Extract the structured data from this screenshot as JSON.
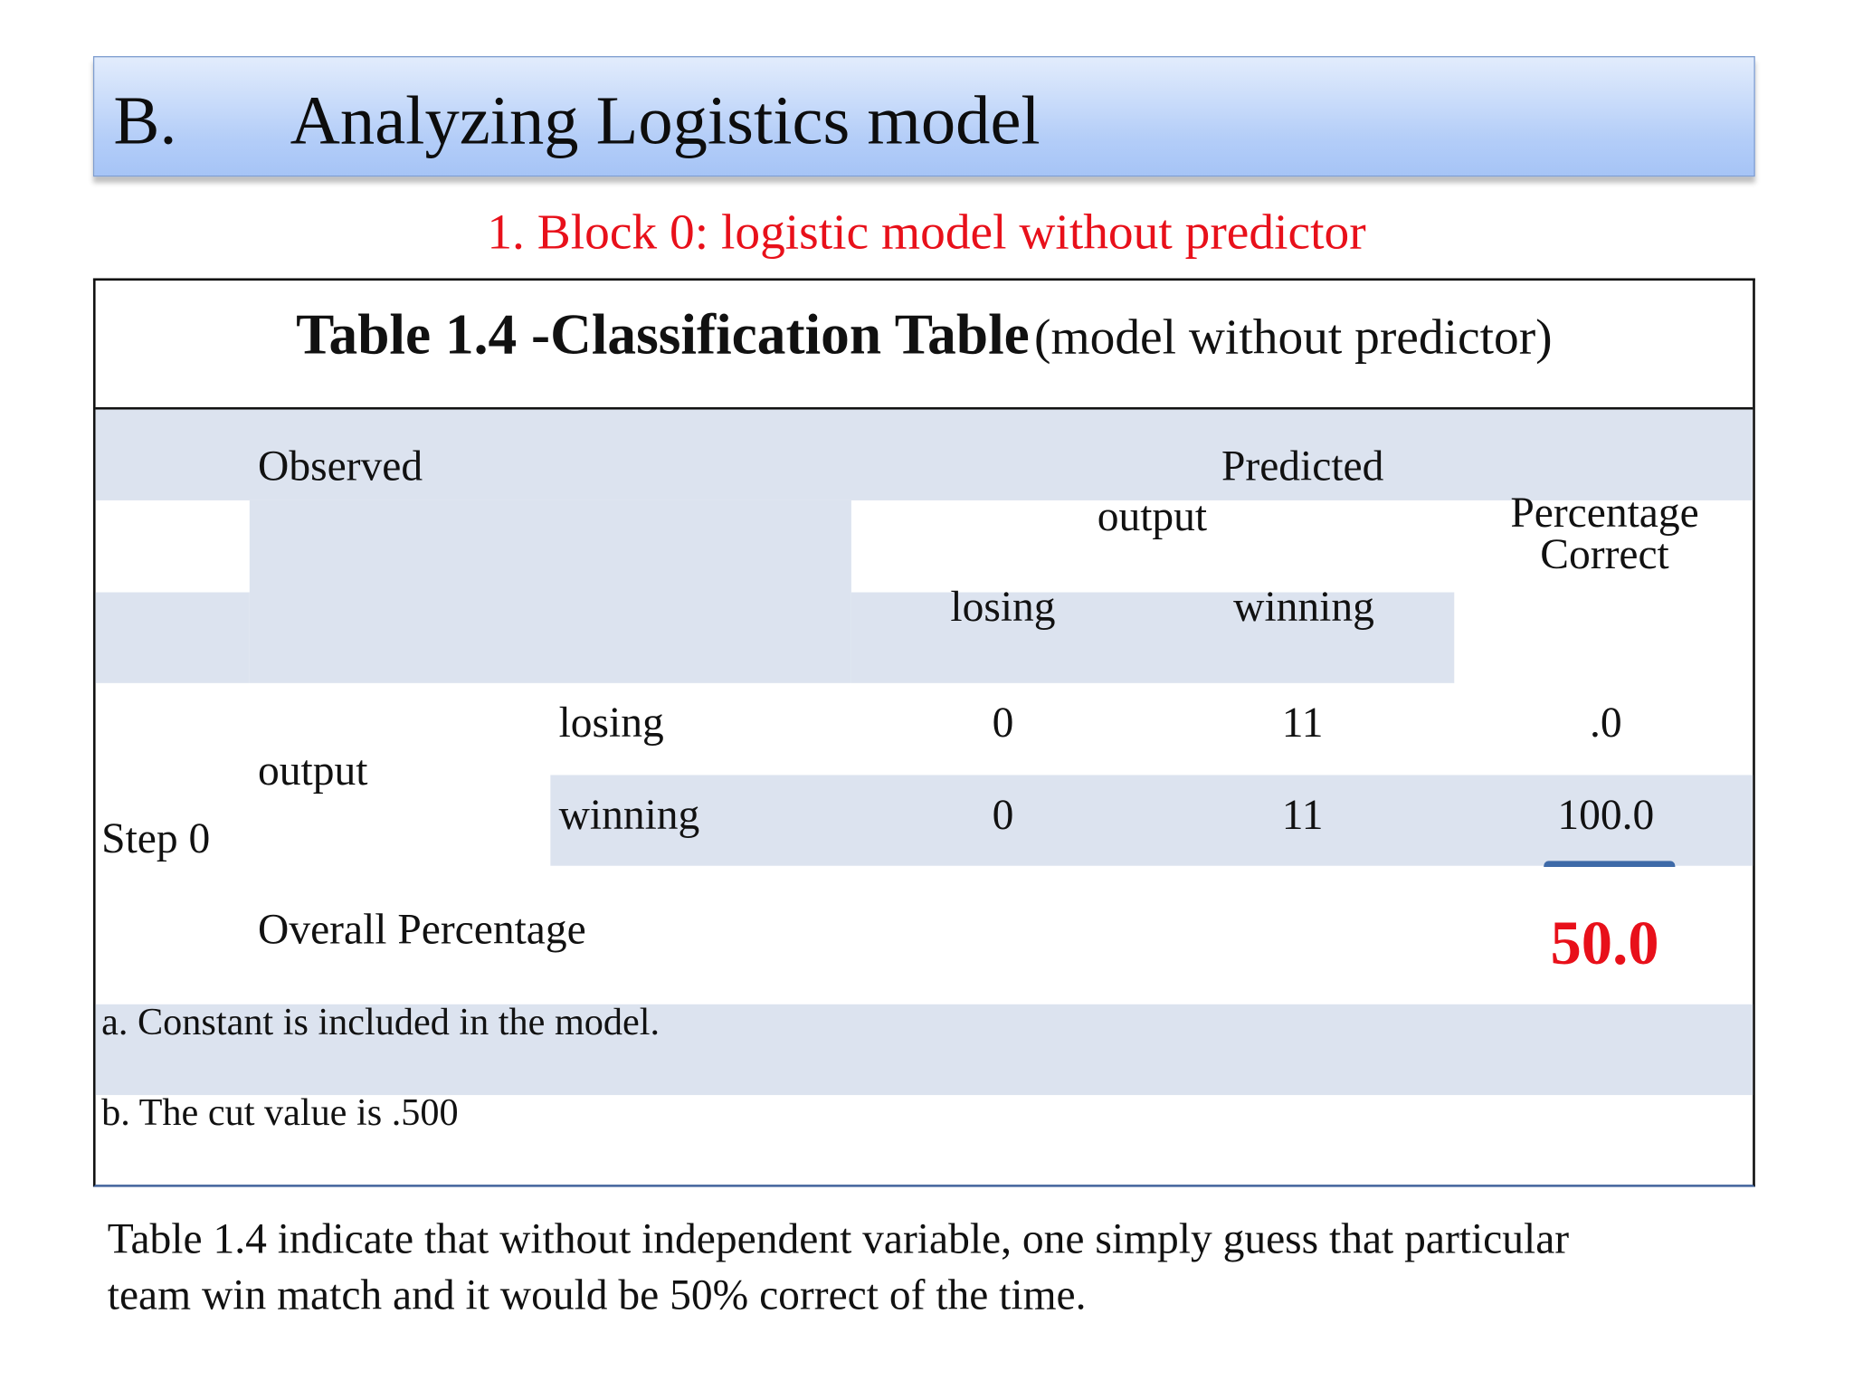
{
  "header": {
    "section": "B.",
    "title": "Analyzing Logistics model"
  },
  "subtitle": "1. Block 0: logistic model without predictor",
  "table": {
    "title_bold": "Table 1.4 -Classification Table",
    "title_normal": "(model without predictor)",
    "observed_label": "Observed",
    "predicted_label": "Predicted",
    "output_label": "output",
    "percentage_correct": [
      "Percentage",
      "Correct"
    ],
    "col_losing": "losing",
    "col_winning": "winning",
    "step_label": "Step 0",
    "row_group_label": "output",
    "rows": [
      {
        "label": "losing",
        "losing": "0",
        "winning": "11",
        "percent": ".0"
      },
      {
        "label": "winning",
        "losing": "0",
        "winning": "11",
        "percent": "100.0"
      }
    ],
    "overall_label": "Overall Percentage",
    "overall_value": "50.0",
    "footnotes": [
      "a. Constant is included in the model.",
      "b. The cut value is .500"
    ]
  },
  "paragraph": [
    "Table 1.4  indicate that without independent variable, one simply guess that particular",
    "team win match and it would be 50% correct  of the time."
  ],
  "colors": {
    "accent_red": "#e8101a",
    "shade": "#dce3ef",
    "header_blue": "#a6c4f6"
  }
}
